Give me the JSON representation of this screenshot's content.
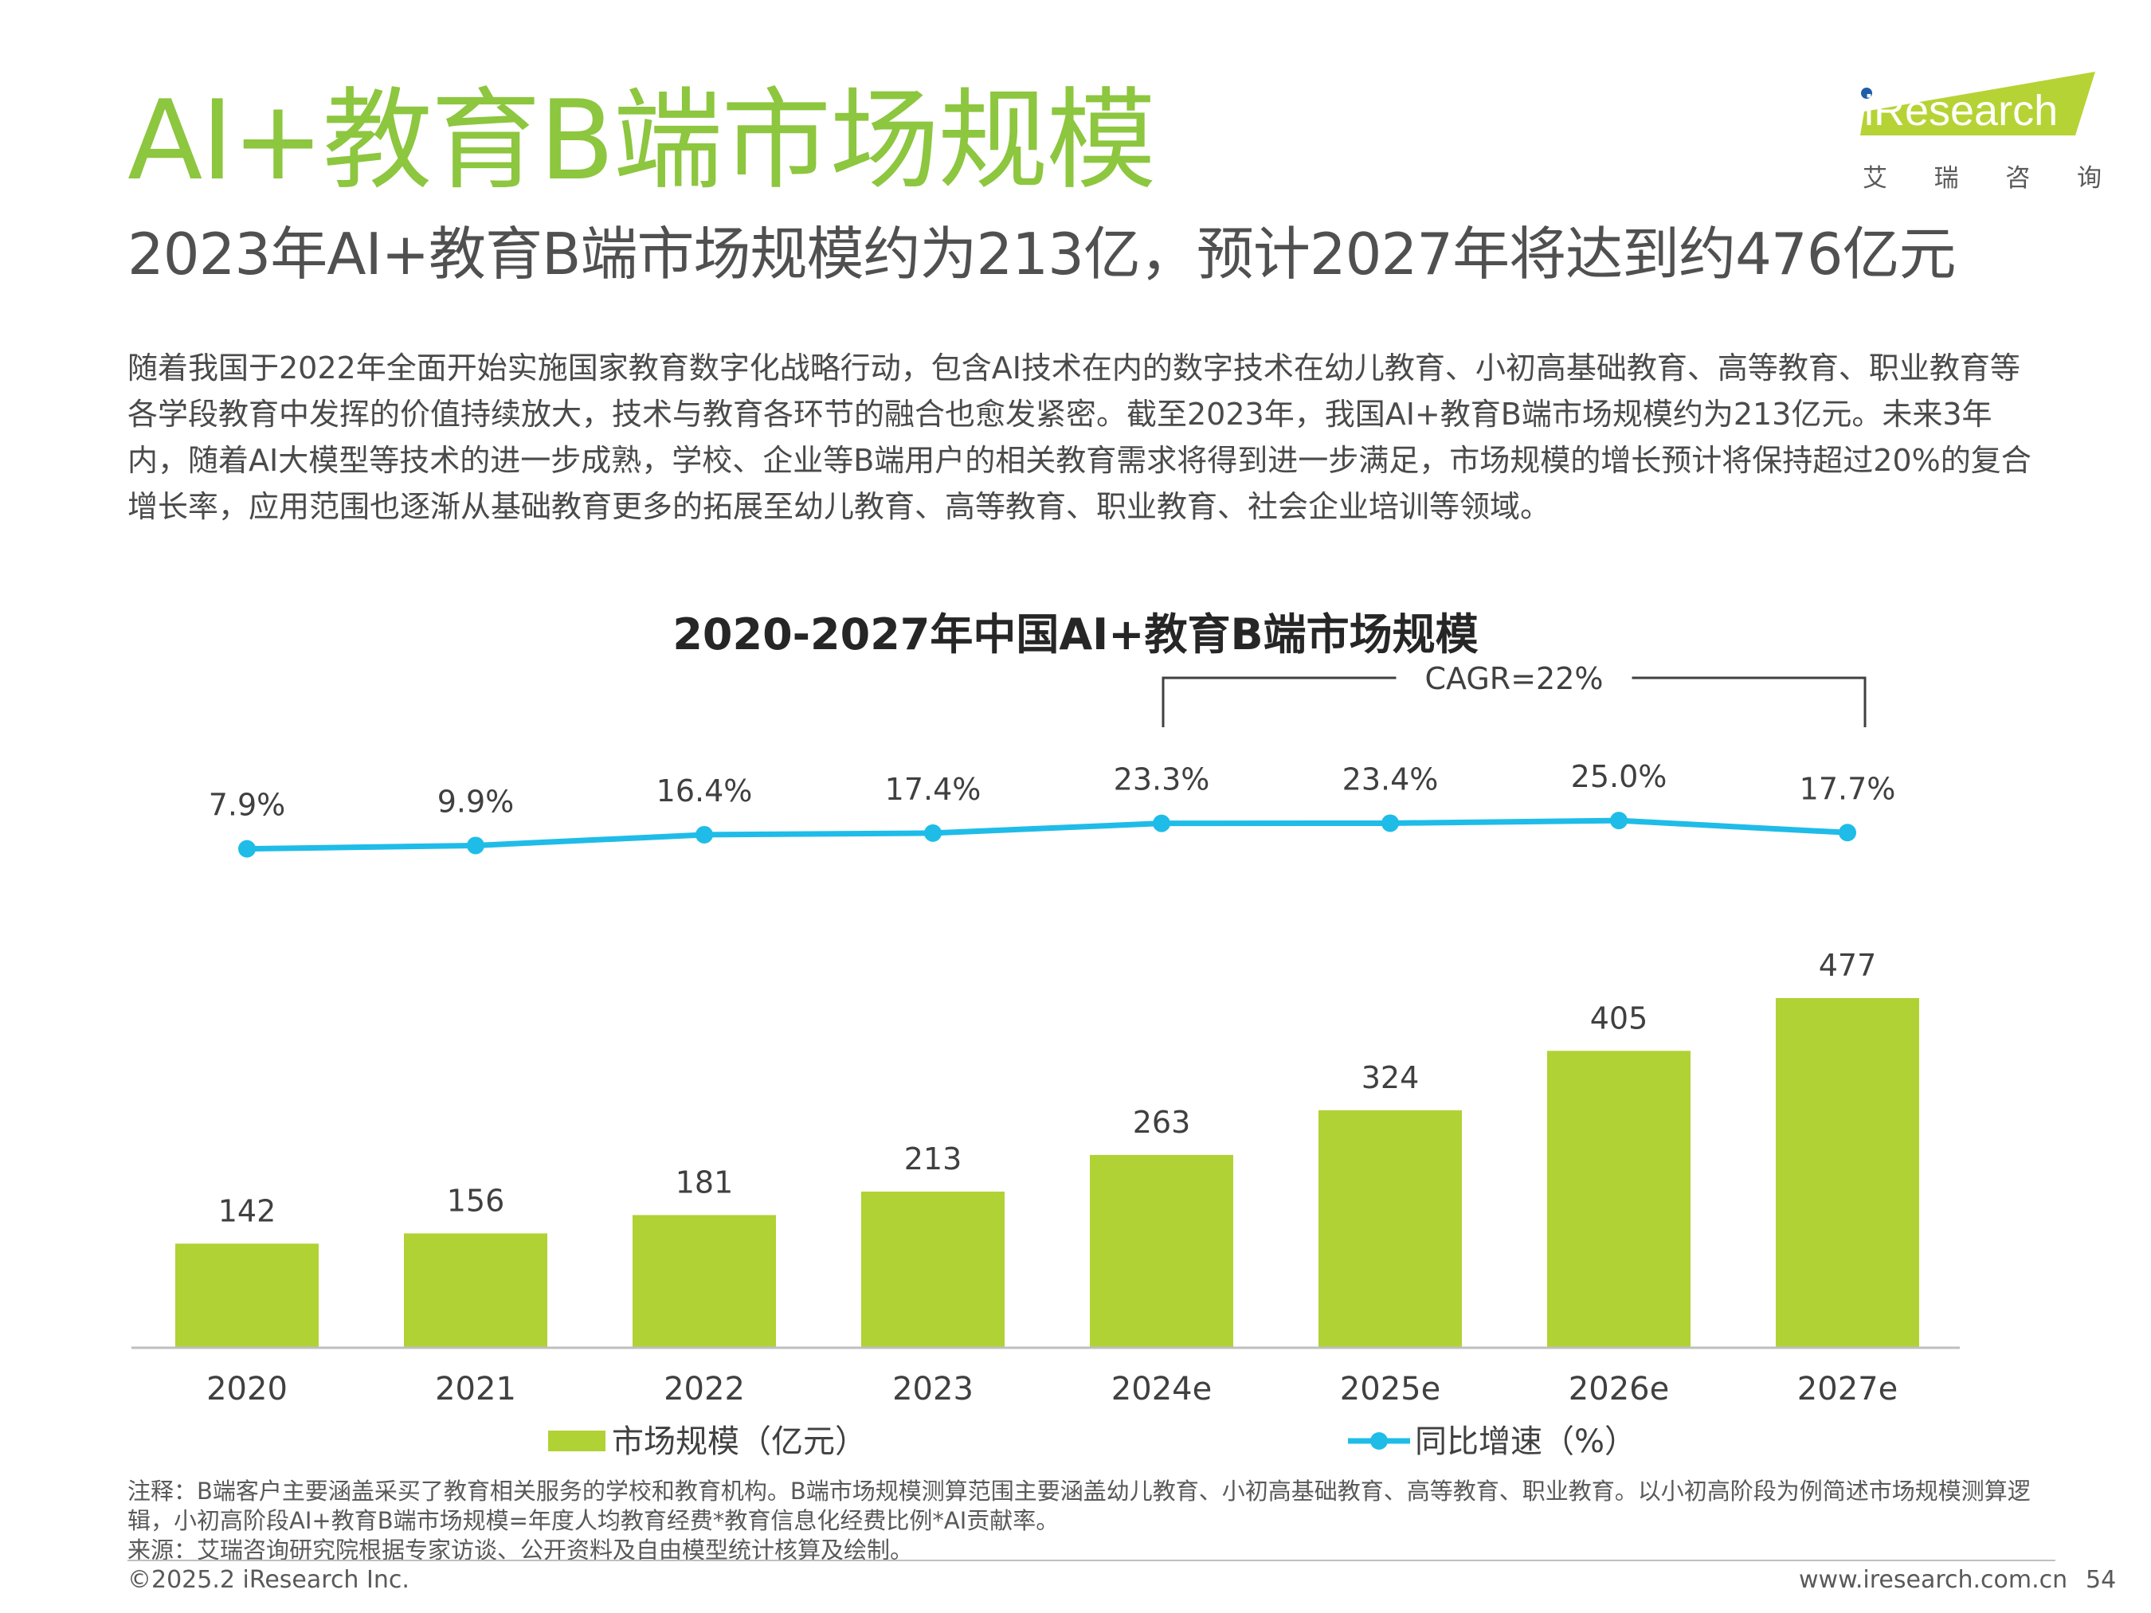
{
  "slide": {
    "title": "AI+教育B端市场规模",
    "subtitle": "2023年AI+教育B端市场规模约为213亿，预计2027年将达到约476亿元",
    "body": "随着我国于2022年全面开始实施国家教育数字化战略行动，包含AI技术在内的数字技术在幼儿教育、小初高基础教育、高等教育、职业教育等各学段教育中发挥的价值持续放大，技术与教育各环节的融合也愈发紧密。截至2023年，我国AI+教育B端市场规模约为213亿元。未来3年内，随着AI大模型等技术的进一步成熟，学校、企业等B端用户的相关教育需求将得到进一步满足，市场规模的增长预计将保持超过20%的复合增长率，应用范围也逐渐从基础教育更多的拓展至幼儿教育、高等教育、职业教育、社会企业培训等领域。"
  },
  "logo": {
    "brand": "iResearch",
    "chinese": [
      "艾",
      "瑞",
      "咨",
      "询"
    ],
    "colors": {
      "green": "#b5d334",
      "dot": "#1e5fa8"
    }
  },
  "chart_data": {
    "type": "bar+line",
    "title": "2020-2027年中国AI+教育B端市场规模",
    "categories": [
      "2020",
      "2021",
      "2022",
      "2023",
      "2024e",
      "2025e",
      "2026e",
      "2027e"
    ],
    "series": [
      {
        "name": "市场规模（亿元）",
        "type": "bar",
        "color": "#b0d234",
        "values": [
          142,
          156,
          181,
          213,
          263,
          324,
          405,
          477
        ],
        "labels": [
          "142",
          "156",
          "181",
          "213",
          "263",
          "324",
          "405",
          "477"
        ]
      },
      {
        "name": "同比增速（%）",
        "type": "line",
        "color": "#1fbce8",
        "values": [
          7.9,
          9.9,
          16.4,
          17.4,
          23.3,
          23.4,
          25.0,
          17.7
        ],
        "labels": [
          "7.9%",
          "9.9%",
          "16.4%",
          "17.4%",
          "23.3%",
          "23.4%",
          "25.0%",
          "17.7%"
        ]
      }
    ],
    "annotation": {
      "text": "CAGR=22%",
      "from": "2024e",
      "to": "2027e"
    },
    "legend_position": "bottom",
    "grid": false
  },
  "notes": {
    "note": "注释：B端客户主要涵盖采买了教育相关服务的学校和教育机构。B端市场规模测算范围主要涵盖幼儿教育、小初高基础教育、高等教育、职业教育。以小初高阶段为例简述市场规模测算逻辑，小初高阶段AI+教育B端市场规模=年度人均教育经费*教育信息化经费比例*AI贡献率。",
    "source": "来源：艾瑞咨询研究院根据专家访谈、公开资料及自由模型统计核算及绘制。"
  },
  "footer": {
    "copyright": "©2025.2 iResearch Inc.",
    "website": "www.iresearch.com.cn",
    "page": "54"
  }
}
